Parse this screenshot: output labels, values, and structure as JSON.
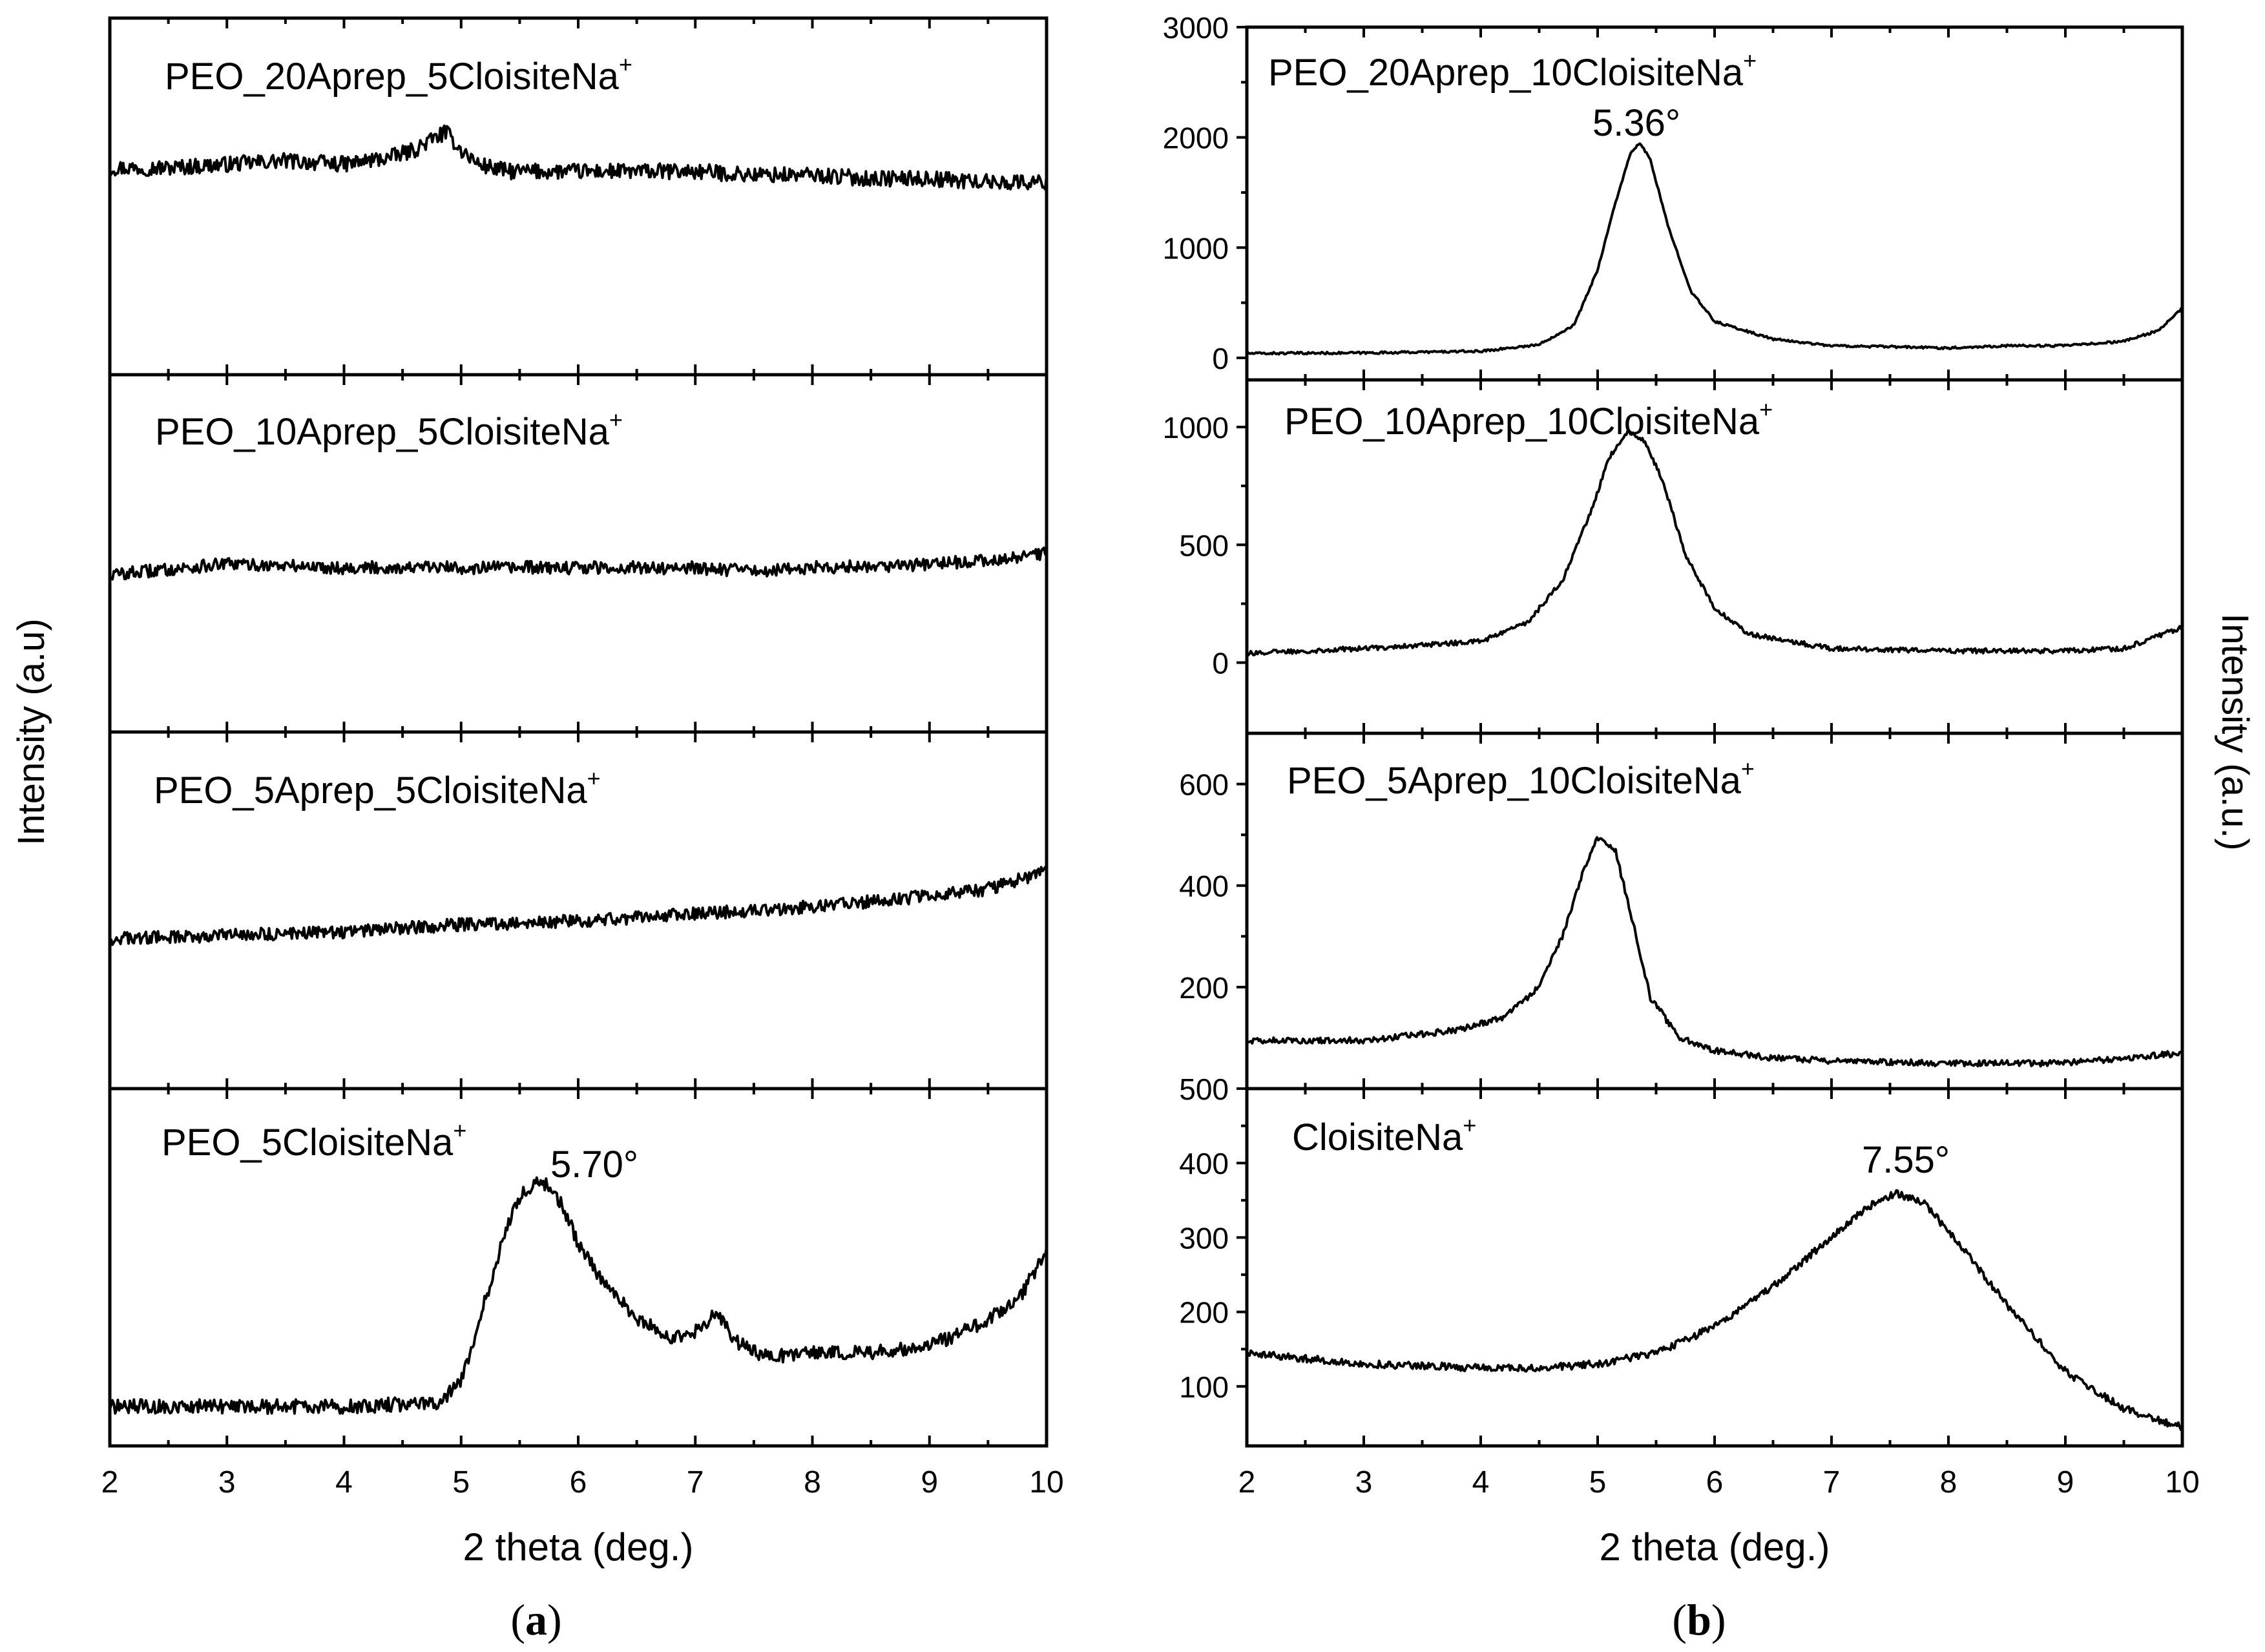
{
  "figure": {
    "caption_a": "a",
    "caption_b": "b",
    "caption_open": "(",
    "caption_close": ")",
    "ink_color": "#000000"
  },
  "chart_data": [
    {
      "type": "line",
      "panel": "a",
      "xlabel": "2 theta (deg.)",
      "ylabel": "Intensity (a.u)",
      "xlim": [
        2,
        10
      ],
      "xticks": [
        "2",
        "3",
        "4",
        "5",
        "6",
        "7",
        "8",
        "9",
        "10"
      ],
      "y_ticks_labeled": false,
      "subplots": [
        {
          "label": "PEO_20Aprep_5CloisiteNa",
          "superscript": "+",
          "ylim": [
            0,
            100
          ],
          "series": [
            {
              "name": "PEO_20Aprep_5CloisiteNa+",
              "x": [
                2,
                2.5,
                3,
                3.5,
                4,
                4.4,
                4.6,
                4.75,
                4.87,
                5.0,
                5.15,
                5.4,
                5.8,
                6.5,
                7,
                7.5,
                8,
                8.5,
                9,
                9.5,
                10
              ],
              "y": [
                58,
                58,
                59,
                60,
                59,
                61,
                63,
                66,
                68,
                63,
                59,
                57,
                57,
                57,
                57,
                56,
                56,
                55,
                55,
                54,
                54
              ],
              "noise": 2.2
            }
          ]
        },
        {
          "label": "PEO_10Aprep_5CloisiteNa",
          "superscript": "+",
          "ylim": [
            0,
            100
          ],
          "series": [
            {
              "name": "PEO_10Aprep_5CloisiteNa+",
              "x": [
                2,
                3,
                4,
                5,
                6,
                7,
                7.5,
                8,
                9,
                9.5,
                10
              ],
              "y": [
                44,
                47,
                46,
                46,
                46,
                46,
                45,
                46,
                47,
                48,
                50
              ],
              "noise": 1.8
            }
          ]
        },
        {
          "label": "PEO_5Aprep_5CloisiteNa",
          "superscript": "+",
          "ylim": [
            0,
            100
          ],
          "series": [
            {
              "name": "PEO_5Aprep_5CloisiteNa+",
              "x": [
                2,
                3,
                4,
                5,
                6,
                7,
                8,
                9,
                9.5,
                10
              ],
              "y": [
                42,
                43,
                44,
                46,
                47,
                49,
                51,
                54,
                56,
                61
              ],
              "noise": 1.8
            }
          ]
        },
        {
          "label": "PEO_5CloisiteNa",
          "superscript": "+",
          "annotation": "5.70°",
          "annotation_x": 5.7,
          "ylim": [
            0,
            100
          ],
          "series": [
            {
              "name": "PEO_5CloisiteNa+",
              "x": [
                2,
                3,
                4,
                4.8,
                5.0,
                5.2,
                5.4,
                5.55,
                5.7,
                5.85,
                6.0,
                6.2,
                6.5,
                6.8,
                7.0,
                7.18,
                7.35,
                7.6,
                8,
                8.5,
                9,
                9.5,
                9.8,
                10
              ],
              "y": [
                11,
                11,
                11,
                12,
                18,
                40,
                62,
                72,
                74,
                68,
                57,
                46,
                36,
                30,
                32,
                37,
                29,
                25,
                26,
                26,
                28,
                35,
                43,
                55
              ],
              "noise": 2.0
            }
          ]
        }
      ]
    },
    {
      "type": "line",
      "panel": "b",
      "xlabel": "2 theta (deg.)",
      "ylabel": "Intensity (a.u.)",
      "xlim": [
        2,
        10
      ],
      "xticks": [
        "2",
        "3",
        "4",
        "5",
        "6",
        "7",
        "8",
        "9",
        "10"
      ],
      "subplots": [
        {
          "label": "PEO_20Aprep_10CloisiteNa",
          "superscript": "+",
          "annotation": "5.36°",
          "annotation_x": 5.36,
          "ylim": [
            -200,
            3000
          ],
          "yticks": [
            "0",
            "1000",
            "2000",
            "3000"
          ],
          "ytick_values": [
            0,
            1000,
            2000,
            3000
          ],
          "series": [
            {
              "name": "PEO_20Aprep_10CloisiteNa+",
              "x": [
                2,
                3,
                4,
                4.5,
                4.8,
                5.0,
                5.15,
                5.28,
                5.36,
                5.45,
                5.6,
                5.8,
                6.0,
                6.5,
                7,
                8,
                8.5,
                9,
                9.5,
                9.8,
                10
              ],
              "y": [
                40,
                45,
                60,
                120,
                300,
                800,
                1400,
                1850,
                1950,
                1800,
                1200,
                600,
                330,
                170,
                110,
                90,
                110,
                110,
                150,
                250,
                450
              ],
              "noise": 10
            }
          ]
        },
        {
          "label": "PEO_10Aprep_10CloisiteNa",
          "superscript": "+",
          "ylim": [
            -300,
            1200
          ],
          "yticks": [
            "0",
            "500",
            "1000"
          ],
          "ytick_values": [
            0,
            500,
            1000
          ],
          "series": [
            {
              "name": "PEO_10Aprep_10CloisiteNa+",
              "x": [
                2,
                3,
                4,
                4.4,
                4.7,
                4.95,
                5.1,
                5.25,
                5.4,
                5.55,
                5.75,
                6.0,
                6.3,
                7,
                8,
                9,
                9.5,
                10
              ],
              "y": [
                40,
                60,
                90,
                170,
                350,
                650,
                870,
                980,
                940,
                780,
                460,
                230,
                120,
                60,
                50,
                50,
                60,
                150
              ],
              "noise": 10
            }
          ]
        },
        {
          "label": "PEO_5Aprep_10CloisiteNa",
          "superscript": "+",
          "ylim": [
            0,
            700
          ],
          "yticks": [
            "200",
            "400",
            "600"
          ],
          "ytick_values": [
            200,
            400,
            600
          ],
          "series": [
            {
              "name": "PEO_5Aprep_10CloisiteNa+",
              "x": [
                2,
                3,
                3.8,
                4.2,
                4.5,
                4.7,
                4.85,
                5.0,
                5.15,
                5.3,
                5.45,
                5.7,
                6.0,
                6.5,
                7,
                8,
                9,
                10
              ],
              "y": [
                95,
                95,
                115,
                140,
                200,
                300,
                410,
                495,
                470,
                330,
                180,
                100,
                75,
                60,
                55,
                50,
                50,
                70
              ],
              "noise": 6
            }
          ]
        },
        {
          "label": "CloisiteNa",
          "superscript": "+",
          "annotation": "7.55°",
          "annotation_x": 7.55,
          "ylim": [
            20,
            500
          ],
          "yticks": [
            "100",
            "200",
            "300",
            "400",
            "500"
          ],
          "ytick_values": [
            100,
            200,
            300,
            400,
            500
          ],
          "series": [
            {
              "name": "CloisiteNa+",
              "x": [
                2,
                3,
                4,
                4.5,
                5,
                5.5,
                6,
                6.5,
                7,
                7.3,
                7.55,
                7.8,
                8.1,
                8.5,
                9,
                9.5,
                10
              ],
              "y": [
                145,
                130,
                125,
                125,
                130,
                145,
                180,
                235,
                300,
                340,
                360,
                345,
                290,
                210,
                120,
                70,
                45
              ],
              "noise": 5
            }
          ]
        }
      ]
    }
  ]
}
